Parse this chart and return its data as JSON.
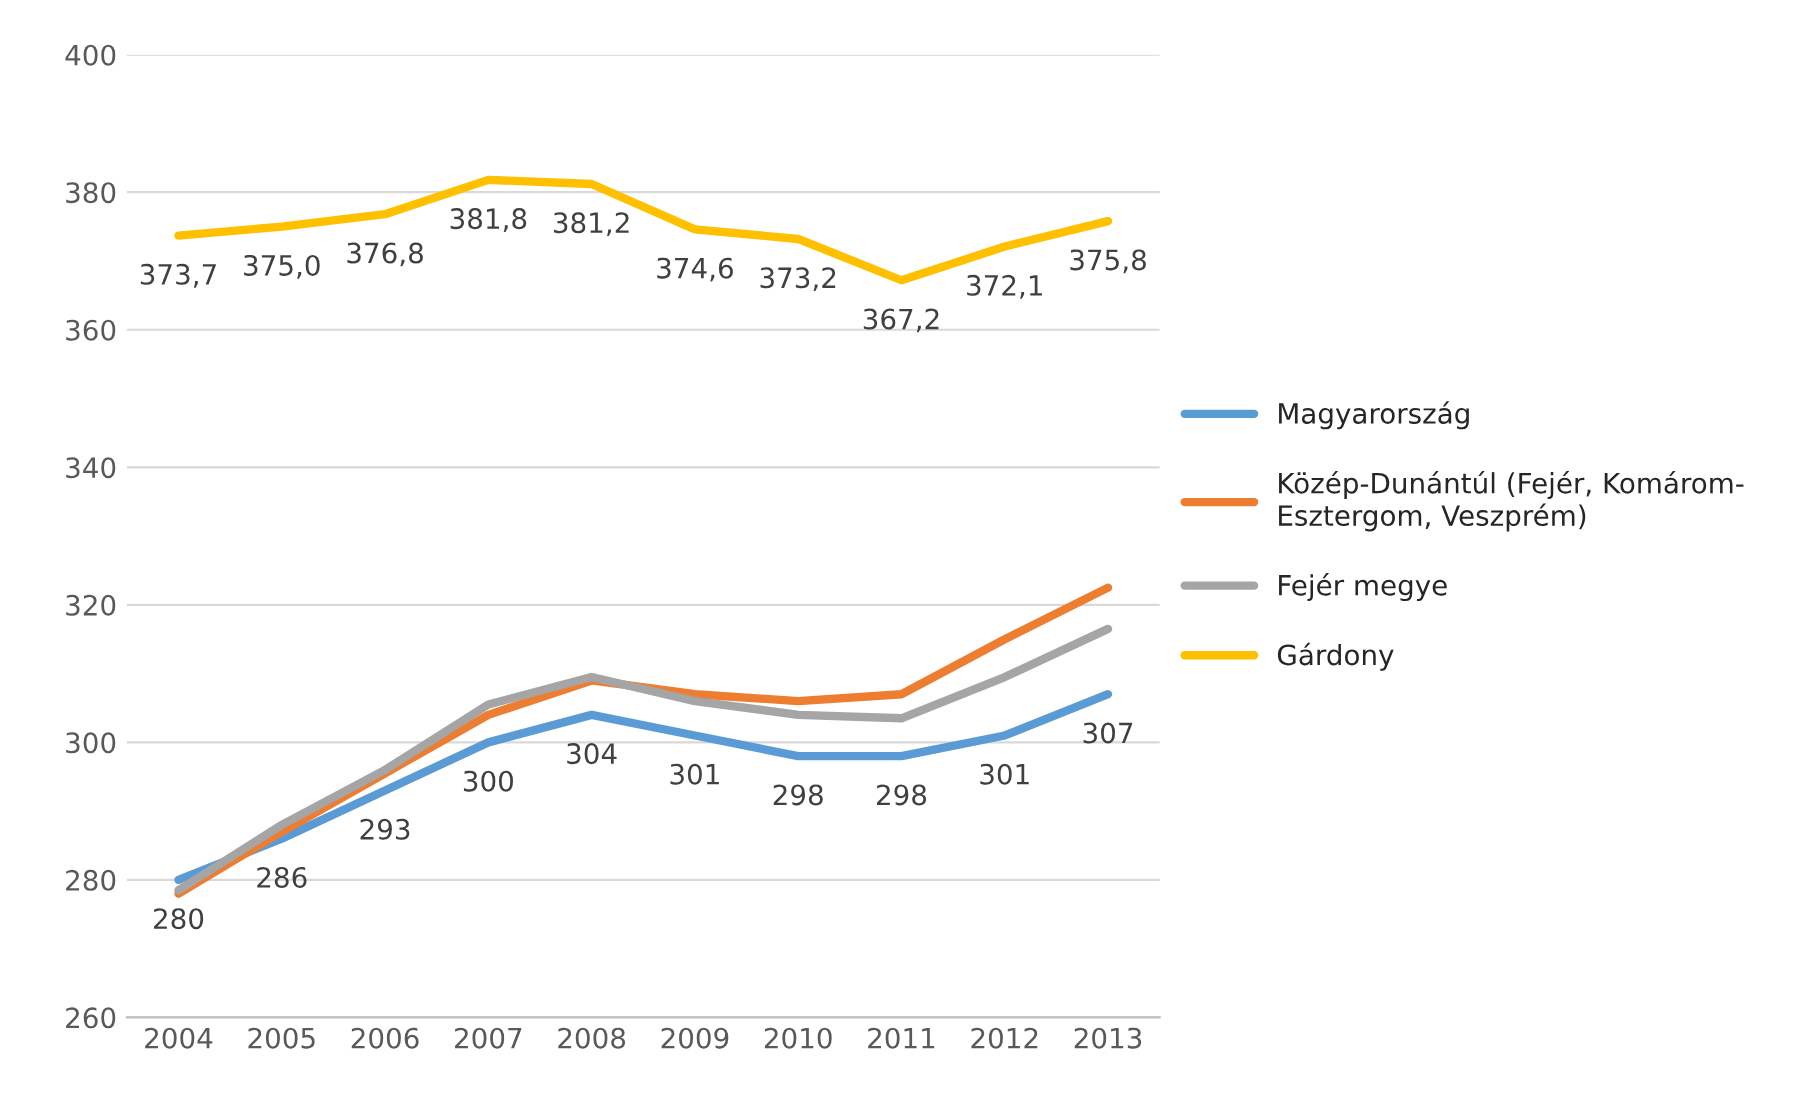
{
  "chart_data": {
    "type": "line",
    "categories": [
      "2004",
      "2005",
      "2006",
      "2007",
      "2008",
      "2009",
      "2010",
      "2011",
      "2012",
      "2013"
    ],
    "series": [
      {
        "name": "Magyarország",
        "color": "#5b9bd5",
        "values": [
          280,
          286,
          293,
          300,
          304,
          301,
          298,
          298,
          301,
          307
        ],
        "value_labels": [
          "280",
          "286",
          "293",
          "300",
          "304",
          "301",
          "298",
          "298",
          "301",
          "307"
        ]
      },
      {
        "name": "Közép-Dunántúl (Fejér, Komárom-\nEsztergom, Veszprém)",
        "color": "#ed7d31",
        "values": [
          278,
          287,
          295.5,
          304,
          309,
          307,
          306,
          307,
          315,
          322.5
        ]
      },
      {
        "name": "Fejér megye",
        "color": "#a5a5a5",
        "values": [
          278.5,
          288,
          296,
          305.5,
          309.5,
          306,
          304,
          303.5,
          309.5,
          316.5
        ]
      },
      {
        "name": "Gárdony",
        "color": "#ffc000",
        "values": [
          373.7,
          375.0,
          376.8,
          381.8,
          381.2,
          374.6,
          373.2,
          367.2,
          372.1,
          375.8
        ],
        "value_labels": [
          "373,7",
          "375,0",
          "376,8",
          "381,8",
          "381,2",
          "374,6",
          "373,2",
          "367,2",
          "372,1",
          "375,8"
        ]
      }
    ],
    "ylim": [
      260,
      400
    ],
    "yticks": [
      260,
      280,
      300,
      320,
      340,
      360,
      380,
      400
    ],
    "grid": "y",
    "legend": "right",
    "marker": "none",
    "line_style": "solid"
  }
}
